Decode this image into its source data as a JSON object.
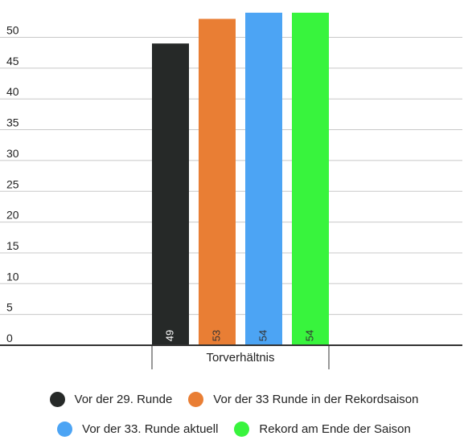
{
  "chart_data": {
    "type": "bar",
    "categories": [
      "Torverhältnis"
    ],
    "series": [
      {
        "name": "Vor der 29. Runde",
        "values": [
          49
        ],
        "color": "#262928",
        "label_color": "#ffffff"
      },
      {
        "name": "Vor der 33 Runde in der Rekordsaison",
        "values": [
          53
        ],
        "color": "#E97E34",
        "label_color": "#333333"
      },
      {
        "name": "Vor der 33. Runde aktuell",
        "values": [
          54
        ],
        "color": "#4CA4F4",
        "label_color": "#333333"
      },
      {
        "name": "Rekord am Ende der Saison",
        "values": [
          54
        ],
        "color": "#38F43D",
        "label_color": "#333333"
      }
    ],
    "y_ticks": [
      0,
      5,
      10,
      15,
      20,
      25,
      30,
      35,
      40,
      45,
      50
    ],
    "ylim": [
      0,
      54
    ],
    "grid": true,
    "legend_position": "bottom"
  },
  "legend": {
    "row1": [
      {
        "label": "Vor der 29. Runde",
        "color": "#262928"
      },
      {
        "label": "Vor der 33 Runde in der Rekordsaison",
        "color": "#E97E34"
      }
    ],
    "row2": [
      {
        "label": "Vor der 33. Runde aktuell",
        "color": "#4CA4F4"
      },
      {
        "label": "Rekord am Ende der Saison",
        "color": "#38F43D"
      }
    ]
  }
}
